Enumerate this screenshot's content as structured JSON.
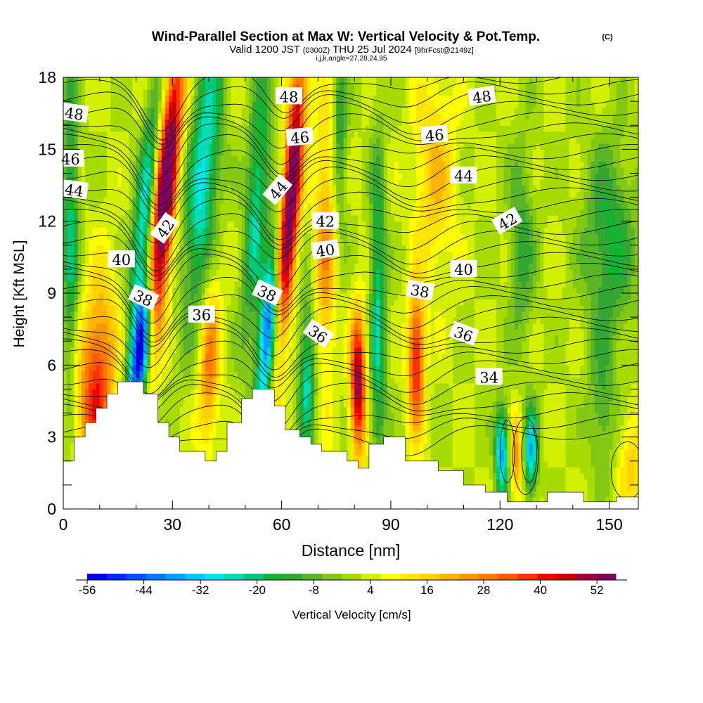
{
  "chart_data": {
    "type": "heatmap",
    "title": "Wind-Parallel Section at Max W: Vertical Velocity & Pot.Temp.",
    "title_mark": "(C)",
    "subtitle": {
      "valid": "Valid 1200 JST",
      "utc": "(0300Z)",
      "date": "THU 25 Jul 2024",
      "fcst": "[9hrFcst@2149z]"
    },
    "params": "i,j,k,angle=27,28,24,95",
    "xlabel": "Distance [nm]",
    "ylabel": "Height [Kft MSL]",
    "xlim": [
      0,
      158
    ],
    "ylim": [
      0,
      18
    ],
    "x_ticks": [
      "0",
      "30",
      "60",
      "90",
      "120",
      "150"
    ],
    "y_ticks": [
      "0",
      "3",
      "6",
      "9",
      "12",
      "15",
      "18"
    ],
    "colorbar": {
      "label": "Vertical Velocity [cm/s]",
      "tick_labels": [
        "-56",
        "-44",
        "-32",
        "-20",
        "-8",
        "4",
        "16",
        "28",
        "40",
        "52"
      ],
      "min": -56,
      "max": 52,
      "step": 4,
      "colors": [
        "#0000f0",
        "#0028f8",
        "#0050ff",
        "#0078ff",
        "#00a0ff",
        "#00c8ff",
        "#00e6f0",
        "#00dcb4",
        "#00c878",
        "#14b432",
        "#32a832",
        "#5ab428",
        "#82c814",
        "#a8dc00",
        "#d2f000",
        "#ffff00",
        "#ffe600",
        "#ffd200",
        "#ffb400",
        "#ff9600",
        "#ff7800",
        "#ff5a00",
        "#ff3200",
        "#f00000",
        "#c80000",
        "#a00040",
        "#800060"
      ]
    },
    "contour_field": "Potential Temperature (C)",
    "contour_labels": [
      {
        "text": "48",
        "x": 3,
        "y": 16.5,
        "rot": 8
      },
      {
        "text": "46",
        "x": 2,
        "y": 14.6,
        "rot": 0
      },
      {
        "text": "44",
        "x": 3,
        "y": 13.3,
        "rot": 8
      },
      {
        "text": "42",
        "x": 28,
        "y": 11.7,
        "rot": -55
      },
      {
        "text": "40",
        "x": 16,
        "y": 10.4,
        "rot": 0
      },
      {
        "text": "38",
        "x": 22,
        "y": 8.8,
        "rot": 25
      },
      {
        "text": "36",
        "x": 38,
        "y": 8.1,
        "rot": 0
      },
      {
        "text": "48",
        "x": 62,
        "y": 17.2,
        "rot": 0
      },
      {
        "text": "46",
        "x": 65,
        "y": 15.5,
        "rot": -5
      },
      {
        "text": "44",
        "x": 59,
        "y": 13.3,
        "rot": -50
      },
      {
        "text": "42",
        "x": 72,
        "y": 12.0,
        "rot": 0
      },
      {
        "text": "40",
        "x": 72,
        "y": 10.8,
        "rot": -8
      },
      {
        "text": "38",
        "x": 56,
        "y": 9.0,
        "rot": 25
      },
      {
        "text": "36",
        "x": 70,
        "y": 7.3,
        "rot": 35
      },
      {
        "text": "38",
        "x": 98,
        "y": 9.1,
        "rot": 10
      },
      {
        "text": "36",
        "x": 110,
        "y": 7.3,
        "rot": 20
      },
      {
        "text": "48",
        "x": 115,
        "y": 17.2,
        "rot": -8
      },
      {
        "text": "46",
        "x": 102,
        "y": 15.6,
        "rot": -5
      },
      {
        "text": "44",
        "x": 110,
        "y": 13.9,
        "rot": 0
      },
      {
        "text": "42",
        "x": 122,
        "y": 12.0,
        "rot": -30
      },
      {
        "text": "40",
        "x": 110,
        "y": 10.0,
        "rot": 0
      },
      {
        "text": "34",
        "x": 117,
        "y": 5.5,
        "rot": 0
      }
    ],
    "terrain_kft": [
      [
        0,
        2.0
      ],
      [
        3,
        2.0
      ],
      [
        3,
        3.0
      ],
      [
        6,
        3.0
      ],
      [
        6,
        3.6
      ],
      [
        9,
        3.6
      ],
      [
        9,
        4.2
      ],
      [
        12,
        4.2
      ],
      [
        12,
        4.8
      ],
      [
        15,
        4.8
      ],
      [
        15,
        5.3
      ],
      [
        22,
        5.3
      ],
      [
        22,
        4.8
      ],
      [
        26,
        4.8
      ],
      [
        26,
        3.6
      ],
      [
        29,
        3.6
      ],
      [
        29,
        3.0
      ],
      [
        32,
        3.0
      ],
      [
        32,
        2.4
      ],
      [
        39,
        2.4
      ],
      [
        39,
        2.0
      ],
      [
        42,
        2.0
      ],
      [
        42,
        2.4
      ],
      [
        45,
        2.4
      ],
      [
        45,
        3.6
      ],
      [
        49,
        3.6
      ],
      [
        49,
        4.6
      ],
      [
        52,
        4.6
      ],
      [
        52,
        5.0
      ],
      [
        58,
        5.0
      ],
      [
        58,
        4.3
      ],
      [
        61,
        4.3
      ],
      [
        61,
        3.3
      ],
      [
        65,
        3.3
      ],
      [
        65,
        3.0
      ],
      [
        68,
        3.0
      ],
      [
        68,
        2.7
      ],
      [
        71,
        2.7
      ],
      [
        71,
        2.4
      ],
      [
        78,
        2.4
      ],
      [
        78,
        2.0
      ],
      [
        81,
        2.0
      ],
      [
        81,
        1.7
      ],
      [
        84,
        1.7
      ],
      [
        84,
        2.7
      ],
      [
        88,
        2.7
      ],
      [
        88,
        3.0
      ],
      [
        94,
        3.0
      ],
      [
        94,
        2.0
      ],
      [
        103,
        2.0
      ],
      [
        103,
        1.6
      ],
      [
        110,
        1.6
      ],
      [
        110,
        1.0
      ],
      [
        116,
        1.0
      ],
      [
        116,
        0.7
      ],
      [
        122,
        0.7
      ],
      [
        122,
        0.3
      ],
      [
        133,
        0.3
      ],
      [
        133,
        0.7
      ],
      [
        143,
        0.7
      ],
      [
        143,
        0.3
      ],
      [
        152,
        0.3
      ],
      [
        152,
        0.5
      ],
      [
        158,
        0.5
      ]
    ]
  }
}
